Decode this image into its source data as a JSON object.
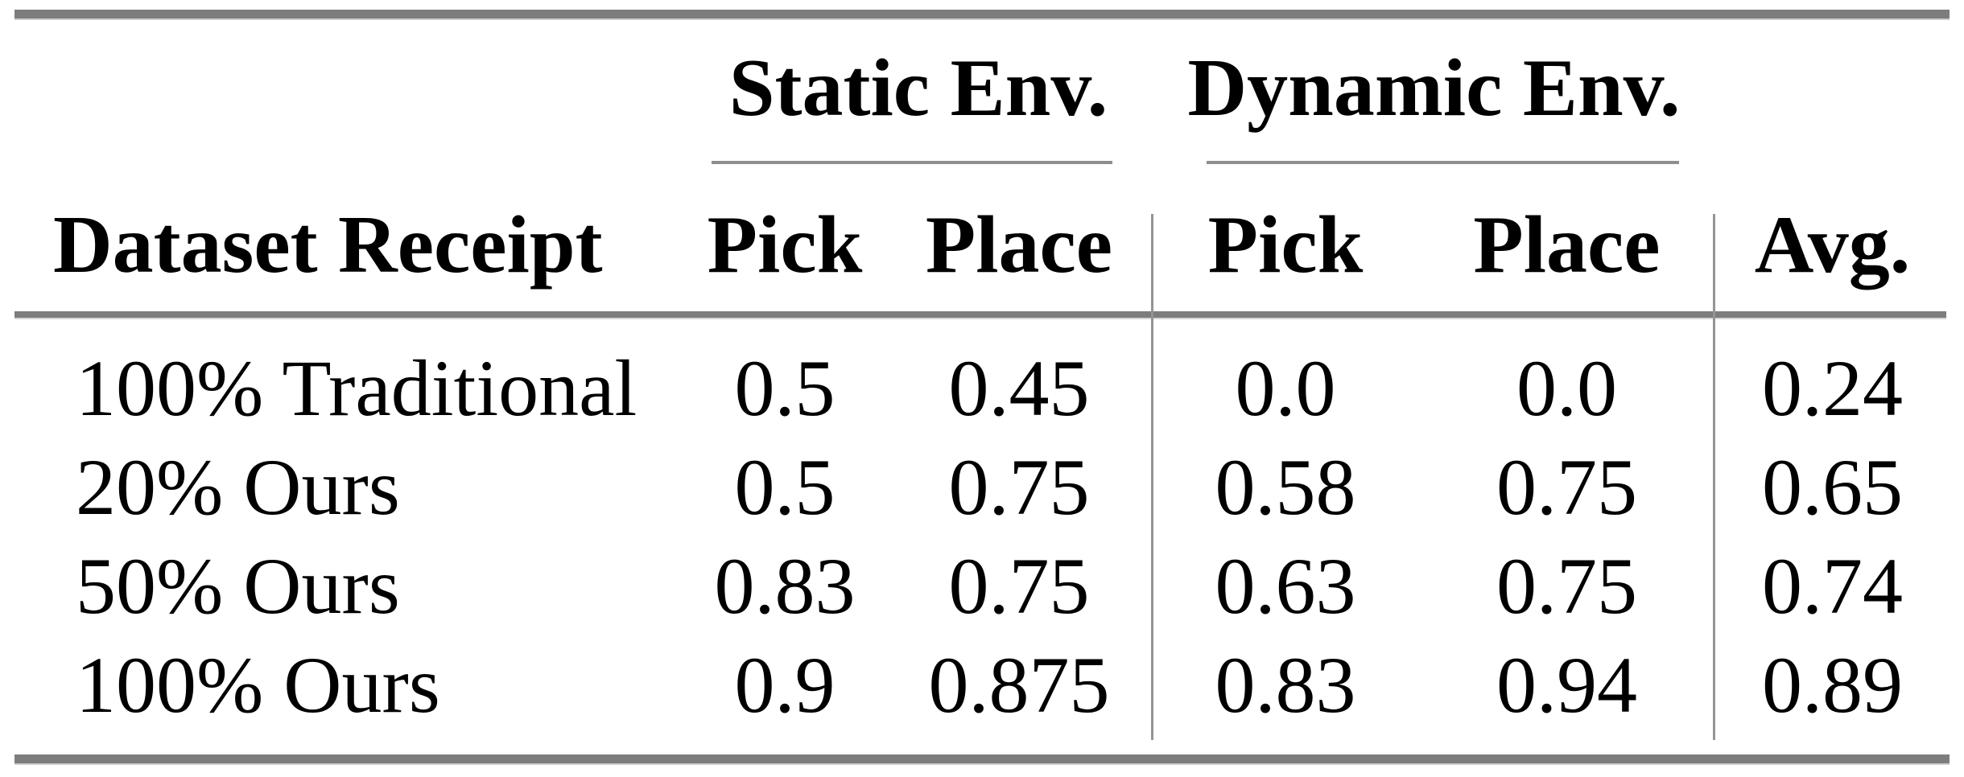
{
  "table": {
    "title_region": "results-table",
    "col_groups": {
      "static": "Static Env.",
      "dynamic": "Dynamic Env."
    },
    "columns": {
      "label": "Dataset Receipt",
      "static_pick": "Pick",
      "static_place": "Place",
      "dynamic_pick": "Pick",
      "dynamic_place": "Place",
      "avg": "Avg."
    },
    "rows": [
      [
        "100% Traditional",
        "0.5",
        "0.45",
        "0.0",
        "0.0",
        "0.24"
      ],
      [
        "20% Ours",
        "0.5",
        "0.75",
        "0.58",
        "0.75",
        "0.65"
      ],
      [
        "50% Ours",
        "0.83",
        "0.75",
        "0.63",
        "0.75",
        "0.74"
      ],
      [
        "100% Ours",
        "0.9",
        "0.875",
        "0.83",
        "0.94",
        "0.89"
      ]
    ]
  },
  "chart_data": {
    "type": "table",
    "column_groups": [
      "",
      "Static Env.",
      "Static Env.",
      "Dynamic Env.",
      "Dynamic Env.",
      ""
    ],
    "columns": [
      "Dataset Receipt",
      "Pick",
      "Place",
      "Pick",
      "Place",
      "Avg."
    ],
    "rows": [
      [
        "100% Traditional",
        0.5,
        0.45,
        0.0,
        0.0,
        0.24
      ],
      [
        "20% Ours",
        0.5,
        0.75,
        0.58,
        0.75,
        0.65
      ],
      [
        "50% Ours",
        0.83,
        0.75,
        0.63,
        0.75,
        0.74
      ],
      [
        "100% Ours",
        0.9,
        0.875,
        0.83,
        0.94,
        0.89
      ]
    ]
  },
  "colors": {
    "background": "#ffffff",
    "text": "#000000",
    "rule_heavy": "#7d7d7d",
    "rule_light": "#8e8e8e",
    "rule_vertical": "#949494"
  }
}
